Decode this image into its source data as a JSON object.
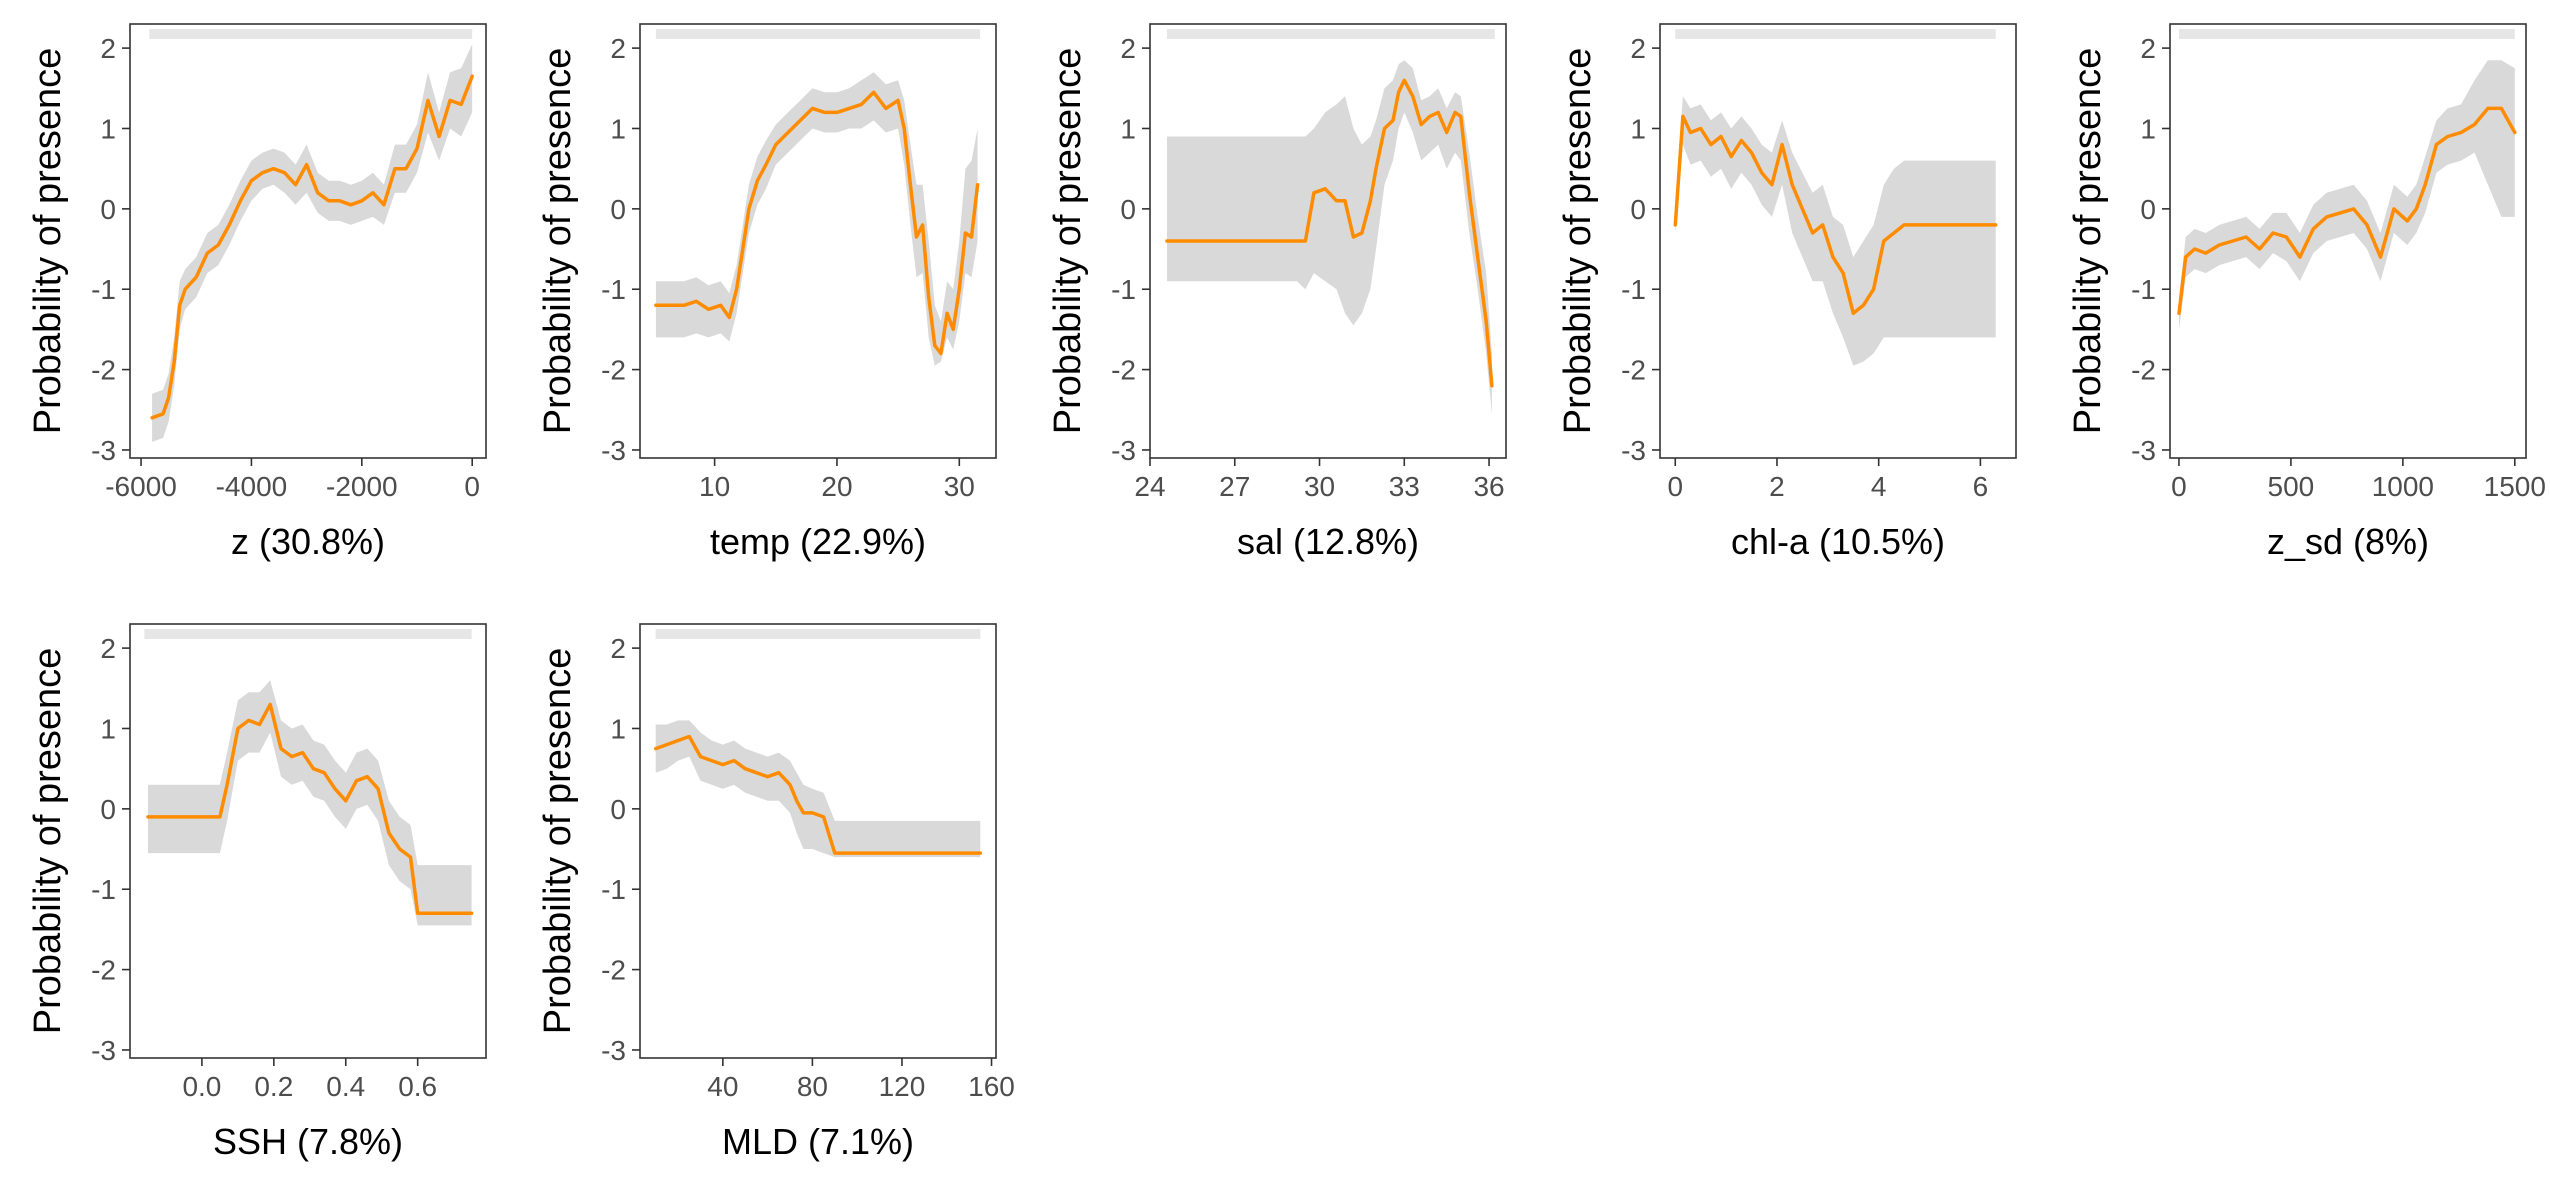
{
  "colors": {
    "line": "#ff8c00",
    "ribbon": "#d9d9d9",
    "rug": "#e6e6e6",
    "axis": "#333333",
    "tick_text": "#4d4d4d"
  },
  "chart_data": [
    {
      "type": "line",
      "xlabel": "z  (30.8%)",
      "ylabel": "Probability of presence",
      "xlim": [
        -6200,
        250
      ],
      "ylim": [
        -3.1,
        2.3
      ],
      "xticks": [
        -6000,
        -4000,
        -2000,
        0
      ],
      "xtick_labels": [
        "-6000",
        "-4000",
        "-2000",
        "0"
      ],
      "yticks": [
        -3,
        -2,
        -1,
        0,
        1,
        2
      ],
      "ytick_labels": [
        "-3",
        "-2",
        "-1",
        "0",
        "1",
        "2"
      ],
      "rug": [
        [
          -5850,
          0
        ]
      ],
      "series": [
        {
          "x": [
            -5800,
            -5600,
            -5500,
            -5400,
            -5300,
            -5200,
            -5000,
            -4800,
            -4600,
            -4400,
            -4200,
            -4000,
            -3800,
            -3600,
            -3400,
            -3200,
            -3000,
            -2800,
            -2600,
            -2400,
            -2200,
            -2000,
            -1800,
            -1600,
            -1400,
            -1200,
            -1000,
            -800,
            -600,
            -400,
            -200,
            0
          ],
          "y": [
            -2.6,
            -2.55,
            -2.35,
            -1.9,
            -1.2,
            -1.0,
            -0.85,
            -0.55,
            -0.45,
            -0.2,
            0.1,
            0.35,
            0.45,
            0.5,
            0.45,
            0.3,
            0.55,
            0.2,
            0.1,
            0.1,
            0.05,
            0.1,
            0.2,
            0.05,
            0.5,
            0.5,
            0.75,
            1.35,
            0.9,
            1.35,
            1.3,
            1.65
          ],
          "lower": [
            -2.9,
            -2.85,
            -2.65,
            -2.2,
            -1.5,
            -1.25,
            -1.1,
            -0.8,
            -0.7,
            -0.45,
            -0.15,
            0.1,
            0.25,
            0.3,
            0.2,
            0.05,
            0.2,
            -0.05,
            -0.15,
            -0.15,
            -0.2,
            -0.15,
            -0.1,
            -0.2,
            0.2,
            0.2,
            0.45,
            0.95,
            0.6,
            1.0,
            0.9,
            1.2
          ],
          "upper": [
            -2.3,
            -2.25,
            -2.05,
            -1.6,
            -0.9,
            -0.75,
            -0.6,
            -0.3,
            -0.2,
            0.05,
            0.35,
            0.6,
            0.7,
            0.75,
            0.7,
            0.55,
            0.8,
            0.45,
            0.35,
            0.35,
            0.3,
            0.35,
            0.45,
            0.3,
            0.8,
            0.8,
            1.05,
            1.7,
            1.2,
            1.7,
            1.75,
            2.05
          ]
        }
      ]
    },
    {
      "type": "line",
      "xlabel": "temp  (22.9%)",
      "ylabel": "Probability of presence",
      "xlim": [
        3.9,
        33.0
      ],
      "ylim": [
        -3.1,
        2.3
      ],
      "xticks": [
        10,
        20,
        30
      ],
      "xtick_labels": [
        "10",
        "20",
        "30"
      ],
      "yticks": [
        -3,
        -2,
        -1,
        0,
        1,
        2
      ],
      "ytick_labels": [
        "-3",
        "-2",
        "-1",
        "0",
        "1",
        "2"
      ],
      "rug": [
        [
          5.2,
          31.7
        ]
      ],
      "series": [
        {
          "x": [
            5.2,
            7.5,
            8.5,
            9.5,
            10.5,
            11.2,
            11.8,
            12.3,
            12.8,
            13.5,
            14.2,
            15,
            16,
            17,
            18,
            19,
            20,
            21,
            22,
            23,
            24,
            25,
            25.5,
            26,
            26.5,
            27,
            27.5,
            28,
            28.5,
            29,
            29.5,
            30,
            30.5,
            31,
            31.5
          ],
          "y": [
            -1.2,
            -1.2,
            -1.15,
            -1.25,
            -1.2,
            -1.35,
            -1.0,
            -0.5,
            0.0,
            0.35,
            0.55,
            0.8,
            0.95,
            1.1,
            1.25,
            1.2,
            1.2,
            1.25,
            1.3,
            1.45,
            1.25,
            1.35,
            1.0,
            0.3,
            -0.35,
            -0.2,
            -1.1,
            -1.7,
            -1.8,
            -1.3,
            -1.5,
            -1.0,
            -0.3,
            -0.35,
            0.3
          ],
          "lower": [
            -1.6,
            -1.6,
            -1.55,
            -1.6,
            -1.55,
            -1.65,
            -1.3,
            -0.8,
            -0.3,
            0.05,
            0.25,
            0.55,
            0.7,
            0.85,
            1.0,
            0.95,
            0.95,
            1.0,
            1.0,
            1.1,
            0.95,
            1.0,
            0.55,
            -0.2,
            -0.85,
            -0.8,
            -1.6,
            -1.95,
            -1.9,
            -1.6,
            -1.75,
            -1.4,
            -0.8,
            -0.85,
            -0.4
          ],
          "upper": [
            -0.9,
            -0.9,
            -0.85,
            -0.95,
            -0.9,
            -1.05,
            -0.7,
            -0.2,
            0.3,
            0.65,
            0.85,
            1.05,
            1.2,
            1.35,
            1.5,
            1.45,
            1.45,
            1.5,
            1.6,
            1.7,
            1.55,
            1.6,
            1.35,
            0.8,
            0.3,
            0.3,
            -0.4,
            -1.2,
            -1.4,
            -0.9,
            -1.0,
            -0.4,
            0.5,
            0.6,
            1.0
          ]
        }
      ]
    },
    {
      "type": "line",
      "xlabel": "sal  (12.8%)",
      "ylabel": "Probability of presence",
      "xlim": [
        24.0,
        36.6
      ],
      "ylim": [
        -3.1,
        2.3
      ],
      "xticks": [
        24,
        27,
        30,
        33,
        36
      ],
      "xtick_labels": [
        "24",
        "27",
        "30",
        "33",
        "36"
      ],
      "yticks": [
        -3,
        -2,
        -1,
        0,
        1,
        2
      ],
      "ytick_labels": [
        "-3",
        "-2",
        "-1",
        "0",
        "1",
        "2"
      ],
      "rug": [
        [
          24.6,
          36.2
        ]
      ],
      "series": [
        {
          "x": [
            24.6,
            29.2,
            29.5,
            29.8,
            30.2,
            30.6,
            30.9,
            31.2,
            31.5,
            31.8,
            32.0,
            32.3,
            32.6,
            32.8,
            33.0,
            33.3,
            33.6,
            33.9,
            34.2,
            34.5,
            34.8,
            35.0,
            35.3,
            35.6,
            35.9,
            36.1
          ],
          "y": [
            -0.4,
            -0.4,
            -0.4,
            0.2,
            0.25,
            0.1,
            0.1,
            -0.35,
            -0.3,
            0.1,
            0.5,
            1.0,
            1.1,
            1.45,
            1.6,
            1.4,
            1.05,
            1.15,
            1.2,
            0.95,
            1.2,
            1.15,
            0.2,
            -0.6,
            -1.4,
            -2.2
          ],
          "lower": [
            -0.9,
            -0.9,
            -1.0,
            -0.8,
            -0.9,
            -1.0,
            -1.3,
            -1.45,
            -1.3,
            -1.0,
            -0.5,
            0.3,
            0.6,
            1.0,
            1.2,
            0.95,
            0.6,
            0.7,
            0.8,
            0.5,
            0.7,
            0.6,
            -0.3,
            -1.0,
            -1.8,
            -2.55
          ],
          "upper": [
            0.9,
            0.9,
            0.9,
            1.0,
            1.2,
            1.3,
            1.4,
            1.0,
            0.8,
            0.9,
            1.1,
            1.5,
            1.6,
            1.8,
            1.85,
            1.75,
            1.35,
            1.4,
            1.5,
            1.25,
            1.45,
            1.4,
            0.7,
            -0.1,
            -0.8,
            -1.8
          ]
        }
      ]
    },
    {
      "type": "line",
      "xlabel": "chl-a  (10.5%)",
      "ylabel": "Probability of presence",
      "xlim": [
        -0.3,
        6.7
      ],
      "ylim": [
        -3.1,
        2.3
      ],
      "xticks": [
        0,
        2,
        4,
        6
      ],
      "xtick_labels": [
        "0",
        "2",
        "4",
        "6"
      ],
      "yticks": [
        -3,
        -2,
        -1,
        0,
        1,
        2
      ],
      "ytick_labels": [
        "-3",
        "-2",
        "-1",
        "0",
        "1",
        "2"
      ],
      "rug": [
        [
          0.0,
          6.3
        ]
      ],
      "series": [
        {
          "x": [
            0.0,
            0.15,
            0.3,
            0.5,
            0.7,
            0.9,
            1.1,
            1.3,
            1.5,
            1.7,
            1.9,
            2.1,
            2.3,
            2.5,
            2.7,
            2.9,
            3.1,
            3.3,
            3.5,
            3.7,
            3.9,
            4.1,
            4.3,
            4.5,
            6.3
          ],
          "y": [
            -0.2,
            1.15,
            0.95,
            1.0,
            0.8,
            0.9,
            0.65,
            0.85,
            0.7,
            0.45,
            0.3,
            0.8,
            0.3,
            0.0,
            -0.3,
            -0.2,
            -0.6,
            -0.8,
            -1.3,
            -1.2,
            -1.0,
            -0.4,
            -0.3,
            -0.2,
            -0.2
          ],
          "lower": [
            -0.3,
            0.8,
            0.55,
            0.6,
            0.4,
            0.5,
            0.25,
            0.45,
            0.3,
            0.05,
            -0.1,
            0.3,
            -0.3,
            -0.6,
            -0.9,
            -0.9,
            -1.3,
            -1.6,
            -1.95,
            -1.9,
            -1.8,
            -1.6,
            -1.6,
            -1.6,
            -1.6
          ],
          "upper": [
            0.0,
            1.4,
            1.25,
            1.3,
            1.1,
            1.2,
            1.0,
            1.15,
            1.0,
            0.8,
            0.7,
            1.1,
            0.7,
            0.45,
            0.2,
            0.3,
            -0.1,
            -0.2,
            -0.6,
            -0.4,
            -0.2,
            0.3,
            0.5,
            0.6,
            0.6
          ]
        }
      ]
    },
    {
      "type": "line",
      "xlabel": "z_sd  (8%)",
      "ylabel": "Probability of presence",
      "xlim": [
        -40,
        1550
      ],
      "ylim": [
        -3.1,
        2.3
      ],
      "xticks": [
        0,
        500,
        1000,
        1500
      ],
      "xtick_labels": [
        "0",
        "500",
        "1000",
        "1500"
      ],
      "yticks": [
        -3,
        -2,
        -1,
        0,
        1,
        2
      ],
      "ytick_labels": [
        "-3",
        "-2",
        "-1",
        "0",
        "1",
        "2"
      ],
      "rug": [
        [
          0,
          1500
        ]
      ],
      "series": [
        {
          "x": [
            0,
            30,
            70,
            120,
            180,
            240,
            300,
            360,
            420,
            480,
            540,
            600,
            660,
            720,
            780,
            840,
            900,
            960,
            1020,
            1060,
            1100,
            1150,
            1200,
            1260,
            1320,
            1380,
            1440,
            1500
          ],
          "y": [
            -1.3,
            -0.6,
            -0.5,
            -0.55,
            -0.45,
            -0.4,
            -0.35,
            -0.5,
            -0.3,
            -0.35,
            -0.6,
            -0.25,
            -0.1,
            -0.05,
            0.0,
            -0.2,
            -0.6,
            0.0,
            -0.15,
            0.0,
            0.3,
            0.8,
            0.9,
            0.95,
            1.05,
            1.25,
            1.25,
            0.95
          ],
          "lower": [
            -1.5,
            -0.85,
            -0.75,
            -0.8,
            -0.7,
            -0.65,
            -0.6,
            -0.75,
            -0.55,
            -0.65,
            -0.9,
            -0.55,
            -0.4,
            -0.35,
            -0.3,
            -0.5,
            -0.9,
            -0.3,
            -0.45,
            -0.3,
            -0.05,
            0.45,
            0.55,
            0.6,
            0.7,
            0.3,
            -0.1,
            -0.1
          ],
          "upper": [
            -1.1,
            -0.35,
            -0.25,
            -0.3,
            -0.2,
            -0.15,
            -0.1,
            -0.25,
            -0.05,
            -0.05,
            -0.3,
            0.05,
            0.2,
            0.25,
            0.3,
            0.1,
            -0.3,
            0.3,
            0.15,
            0.3,
            0.65,
            1.1,
            1.25,
            1.3,
            1.6,
            1.85,
            1.85,
            1.75
          ]
        }
      ]
    },
    {
      "type": "line",
      "xlabel": "SSH  (7.8%)",
      "ylabel": "Probability of presence",
      "xlim": [
        -0.2,
        0.79
      ],
      "ylim": [
        -3.1,
        2.3
      ],
      "xticks": [
        0.0,
        0.2,
        0.4,
        0.6
      ],
      "xtick_labels": [
        "0.0",
        "0.2",
        "0.4",
        "0.6"
      ],
      "yticks": [
        -3,
        -2,
        -1,
        0,
        1,
        2
      ],
      "ytick_labels": [
        "-3",
        "-2",
        "-1",
        "0",
        "1",
        "2"
      ],
      "rug": [
        [
          -0.16,
          0.75
        ]
      ],
      "series": [
        {
          "x": [
            -0.15,
            0.05,
            0.07,
            0.1,
            0.13,
            0.16,
            0.19,
            0.22,
            0.25,
            0.28,
            0.31,
            0.34,
            0.37,
            0.4,
            0.43,
            0.46,
            0.49,
            0.52,
            0.55,
            0.58,
            0.6,
            0.75
          ],
          "y": [
            -0.1,
            -0.1,
            0.3,
            1.0,
            1.1,
            1.05,
            1.3,
            0.75,
            0.65,
            0.7,
            0.5,
            0.45,
            0.25,
            0.1,
            0.35,
            0.4,
            0.25,
            -0.3,
            -0.5,
            -0.6,
            -1.3,
            -1.3
          ],
          "lower": [
            -0.55,
            -0.55,
            -0.15,
            0.6,
            0.7,
            0.7,
            0.95,
            0.4,
            0.3,
            0.35,
            0.15,
            0.1,
            -0.1,
            -0.25,
            0.0,
            0.05,
            -0.15,
            -0.7,
            -0.9,
            -1.0,
            -1.45,
            -1.45
          ],
          "upper": [
            0.3,
            0.3,
            0.7,
            1.35,
            1.45,
            1.45,
            1.6,
            1.1,
            1.0,
            1.05,
            0.85,
            0.8,
            0.6,
            0.45,
            0.7,
            0.75,
            0.6,
            0.1,
            -0.1,
            -0.2,
            -0.7,
            -0.7
          ]
        }
      ]
    },
    {
      "type": "line",
      "xlabel": "MLD  (7.1%)",
      "ylabel": "Probability of presence",
      "xlim": [
        3,
        162
      ],
      "ylim": [
        -3.1,
        2.3
      ],
      "xticks": [
        40,
        80,
        120,
        160
      ],
      "xtick_labels": [
        "40",
        "80",
        "120",
        "160"
      ],
      "yticks": [
        -3,
        -2,
        -1,
        0,
        1,
        2
      ],
      "ytick_labels": [
        "-3",
        "-2",
        "-1",
        "0",
        "1",
        "2"
      ],
      "rug": [
        [
          10,
          155
        ]
      ],
      "series": [
        {
          "x": [
            10,
            15,
            20,
            25,
            30,
            35,
            40,
            45,
            50,
            55,
            60,
            65,
            70,
            73,
            76,
            80,
            85,
            90,
            155
          ],
          "y": [
            0.75,
            0.8,
            0.85,
            0.9,
            0.65,
            0.6,
            0.55,
            0.6,
            0.5,
            0.45,
            0.4,
            0.45,
            0.3,
            0.1,
            -0.05,
            -0.05,
            -0.1,
            -0.55,
            -0.55
          ],
          "lower": [
            0.45,
            0.5,
            0.6,
            0.65,
            0.35,
            0.3,
            0.25,
            0.3,
            0.2,
            0.15,
            0.1,
            0.1,
            -0.05,
            -0.3,
            -0.5,
            -0.5,
            -0.55,
            -0.6,
            -0.6
          ],
          "upper": [
            1.05,
            1.05,
            1.1,
            1.1,
            0.95,
            0.85,
            0.8,
            0.85,
            0.75,
            0.7,
            0.65,
            0.7,
            0.6,
            0.45,
            0.3,
            0.25,
            0.2,
            -0.15,
            -0.15
          ]
        }
      ]
    }
  ]
}
